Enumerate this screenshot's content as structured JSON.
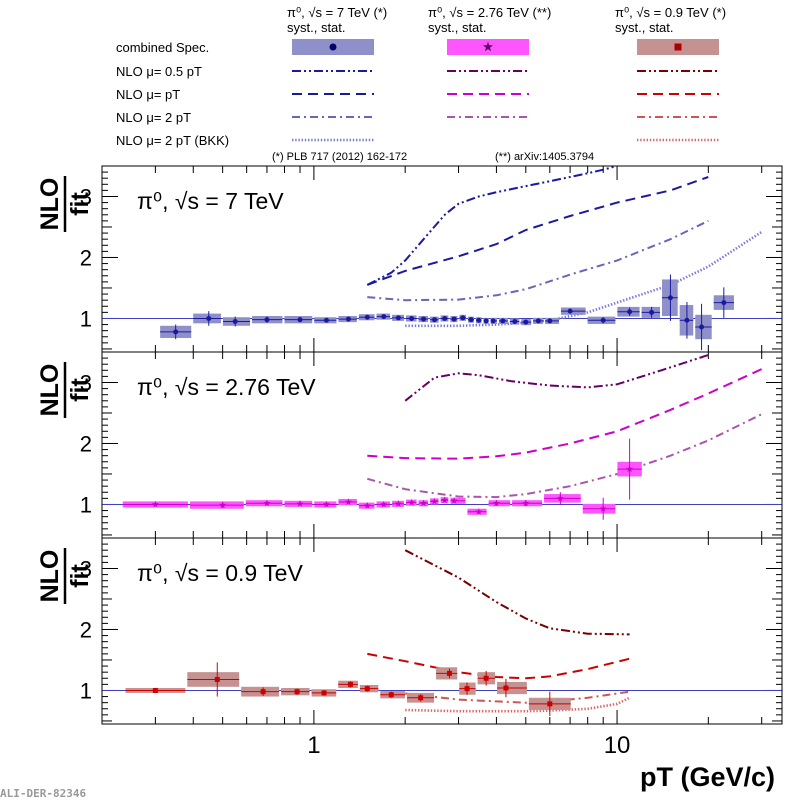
{
  "legend": {
    "headers": [
      {
        "label": "π⁰, √s = 7 TeV (*)",
        "sub": "syst., stat."
      },
      {
        "label": "π⁰, √s = 2.76 TeV (**)",
        "sub": "syst., stat."
      },
      {
        "label": "π⁰, √s = 0.9 TeV (*)",
        "sub": "syst., stat."
      }
    ],
    "rows": [
      "combined Spec.",
      "NLO μ= 0.5 pT",
      "NLO μ= pT",
      "NLO μ= 2 pT",
      "NLO μ= 2 pT (BKK)"
    ],
    "refs": [
      "(*) PLB 717 (2012) 162-172",
      "(**) arXiv:1405.3794"
    ]
  },
  "watermark": "ALI-DER-82346",
  "colors": {
    "7TeV": "#1a1aa0",
    "7TeV_box": "#8f90c9",
    "2.76TeV": "#cc00cc",
    "2.76TeV_dark": "#660066",
    "2.76TeV_box": "#ff55ff",
    "0.9TeV": "#cc0000",
    "0.9TeV_dark": "#7a0000",
    "0.9TeV_box": "#c69191",
    "unity_line": "#4040c0"
  },
  "chart_data": [
    {
      "type": "line",
      "panel_label": "π⁰, √s = 7 TeV",
      "ylabel": "NLO / fit",
      "xlabel": "pT (GeV/c)",
      "x_scale": "log",
      "xlim": [
        0.2,
        35
      ],
      "ylim": [
        0.45,
        3.5
      ],
      "yticks": [
        1,
        2,
        3
      ],
      "xtick_labels": [
        "1",
        "10"
      ],
      "series": [
        {
          "name": "combined Spec.",
          "style": "points",
          "x": [
            0.35,
            0.45,
            0.55,
            0.7,
            0.9,
            1.1,
            1.3,
            1.5,
            1.7,
            1.9,
            2.1,
            2.3,
            2.5,
            2.7,
            2.9,
            3.1,
            3.3,
            3.5,
            3.7,
            3.9,
            4.2,
            4.6,
            5.0,
            5.5,
            6.0,
            7.0,
            9.0,
            11.0,
            13.0,
            15.0,
            17.0,
            19.0,
            22.5
          ],
          "y": [
            0.78,
            1.0,
            0.95,
            0.98,
            0.98,
            0.97,
            0.99,
            1.02,
            1.03,
            1.01,
            1.0,
            0.99,
            0.98,
            1.0,
            0.99,
            1.01,
            0.98,
            0.97,
            0.96,
            0.96,
            0.96,
            0.95,
            0.94,
            0.96,
            0.96,
            1.12,
            0.97,
            1.11,
            1.1,
            1.34,
            0.97,
            0.86,
            1.26
          ],
          "syst": [
            0.1,
            0.08,
            0.07,
            0.06,
            0.06,
            0.05,
            0.05,
            0.05,
            0.05,
            0.05,
            0.05,
            0.05,
            0.05,
            0.05,
            0.05,
            0.05,
            0.05,
            0.05,
            0.05,
            0.05,
            0.05,
            0.05,
            0.05,
            0.05,
            0.05,
            0.06,
            0.06,
            0.08,
            0.09,
            0.3,
            0.25,
            0.2,
            0.12
          ],
          "stat": [
            0.12,
            0.12,
            0.08,
            0.05,
            0.04,
            0.03,
            0.03,
            0.03,
            0.02,
            0.02,
            0.02,
            0.02,
            0.02,
            0.02,
            0.02,
            0.02,
            0.02,
            0.02,
            0.02,
            0.02,
            0.02,
            0.02,
            0.02,
            0.02,
            0.02,
            0.04,
            0.05,
            0.07,
            0.09,
            0.38,
            0.3,
            0.38,
            0.25
          ]
        },
        {
          "name": "NLO μ= 0.5 pT",
          "style": "dashdotdot",
          "x": [
            1.5,
            1.8,
            2.0,
            2.3,
            2.7,
            3.0,
            3.5,
            4.0,
            5.0,
            6.0,
            7.0,
            8.0,
            9.0,
            10.0
          ],
          "y": [
            1.55,
            1.75,
            1.95,
            2.3,
            2.7,
            2.88,
            3.0,
            3.07,
            3.17,
            3.25,
            3.32,
            3.38,
            3.44,
            3.5
          ]
        },
        {
          "name": "NLO μ= pT",
          "style": "dashed",
          "x": [
            1.5,
            2.0,
            3.0,
            4.0,
            5.0,
            7.0,
            10.0,
            15.0,
            20.0
          ],
          "y": [
            1.55,
            1.78,
            2.02,
            2.22,
            2.45,
            2.68,
            2.9,
            3.1,
            3.32
          ]
        },
        {
          "name": "NLO μ= 2 pT",
          "style": "dashdot",
          "x": [
            1.5,
            2.0,
            3.0,
            4.0,
            5.0,
            7.0,
            10.0,
            15.0,
            20.0
          ],
          "y": [
            1.35,
            1.3,
            1.31,
            1.38,
            1.48,
            1.72,
            1.95,
            2.3,
            2.6
          ]
        },
        {
          "name": "NLO μ= 2 pT (BKK)",
          "style": "dotted",
          "x": [
            2.0,
            3.0,
            4.0,
            5.0,
            6.0,
            8.0,
            10.0,
            15.0,
            20.0,
            30.0
          ],
          "y": [
            0.88,
            0.88,
            0.9,
            0.93,
            0.97,
            1.1,
            1.26,
            1.55,
            1.85,
            2.42
          ]
        }
      ]
    },
    {
      "type": "line",
      "panel_label": "π⁰, √s = 2.76 TeV",
      "ylabel": "NLO / fit",
      "xlabel": "pT (GeV/c)",
      "x_scale": "log",
      "xlim": [
        0.2,
        35
      ],
      "ylim": [
        0.45,
        3.5
      ],
      "yticks": [
        1,
        2,
        3
      ],
      "series": [
        {
          "name": "combined Spec.",
          "style": "points",
          "x": [
            0.3,
            0.5,
            0.7,
            0.9,
            1.1,
            1.3,
            1.5,
            1.7,
            1.9,
            2.1,
            2.3,
            2.5,
            2.7,
            2.9,
            3.5,
            4.0,
            5.0,
            6.5,
            9.0,
            11.0
          ],
          "y": [
            1.0,
            0.99,
            1.02,
            1.01,
            1.0,
            1.04,
            0.98,
            1.0,
            1.01,
            1.03,
            1.02,
            1.05,
            1.07,
            1.06,
            0.88,
            1.02,
            1.02,
            1.1,
            0.93,
            1.58
          ],
          "syst": [
            0.05,
            0.06,
            0.05,
            0.05,
            0.05,
            0.05,
            0.05,
            0.05,
            0.05,
            0.05,
            0.05,
            0.05,
            0.05,
            0.05,
            0.05,
            0.05,
            0.05,
            0.07,
            0.08,
            0.12
          ],
          "stat": [
            0.0,
            0.05,
            0.03,
            0.02,
            0.02,
            0.02,
            0.02,
            0.02,
            0.02,
            0.02,
            0.02,
            0.02,
            0.03,
            0.03,
            0.03,
            0.04,
            0.05,
            0.1,
            0.18,
            0.5
          ]
        },
        {
          "name": "NLO μ= 0.5 pT",
          "style": "dashdotdot",
          "x": [
            2.0,
            2.5,
            3.0,
            3.5,
            4.5,
            6.0,
            8.0,
            10.0,
            14.0,
            20.0
          ],
          "y": [
            2.7,
            3.08,
            3.15,
            3.12,
            3.02,
            2.95,
            2.92,
            2.97,
            3.2,
            3.45
          ]
        },
        {
          "name": "NLO μ= pT",
          "style": "dashed",
          "x": [
            1.5,
            2.0,
            3.0,
            4.0,
            5.0,
            7.0,
            10.0,
            15.0,
            20.0,
            30.0
          ],
          "y": [
            1.8,
            1.76,
            1.75,
            1.79,
            1.85,
            2.0,
            2.2,
            2.55,
            2.82,
            3.22
          ]
        },
        {
          "name": "NLO μ= 2 pT",
          "style": "dashdot",
          "x": [
            1.5,
            2.0,
            3.0,
            4.0,
            5.0,
            7.0,
            10.0,
            15.0,
            20.0,
            30.0
          ],
          "y": [
            1.42,
            1.25,
            1.13,
            1.12,
            1.17,
            1.3,
            1.5,
            1.8,
            2.05,
            2.48
          ]
        }
      ]
    },
    {
      "type": "line",
      "panel_label": "π⁰, √s = 0.9 TeV",
      "ylabel": "NLO / fit",
      "xlabel": "pT (GeV/c)",
      "x_scale": "log",
      "xlim": [
        0.2,
        35
      ],
      "ylim": [
        0.45,
        3.5
      ],
      "yticks": [
        1,
        2,
        3
      ],
      "series": [
        {
          "name": "combined Spec.",
          "style": "points",
          "x": [
            0.3,
            0.48,
            0.68,
            0.88,
            1.08,
            1.32,
            1.5,
            1.8,
            2.25,
            2.8,
            3.2,
            3.7,
            4.3,
            6.0
          ],
          "y": [
            1.0,
            1.18,
            0.98,
            0.98,
            0.96,
            1.1,
            1.03,
            0.93,
            0.88,
            1.28,
            1.03,
            1.2,
            1.04,
            0.78
          ],
          "syst": [
            0.04,
            0.12,
            0.08,
            0.06,
            0.06,
            0.06,
            0.06,
            0.06,
            0.08,
            0.1,
            0.1,
            0.1,
            0.1,
            0.1
          ],
          "stat": [
            0.0,
            0.28,
            0.07,
            0.05,
            0.04,
            0.05,
            0.05,
            0.05,
            0.06,
            0.08,
            0.1,
            0.12,
            0.15,
            0.2
          ]
        },
        {
          "name": "NLO μ= 0.5 pT",
          "style": "dashdotdot",
          "x": [
            2.0,
            3.0,
            4.0,
            5.0,
            6.0,
            8.0,
            11.0
          ],
          "y": [
            3.3,
            2.85,
            2.45,
            2.18,
            2.02,
            1.93,
            1.92
          ]
        },
        {
          "name": "NLO μ= pT",
          "style": "dashed",
          "x": [
            1.5,
            2.0,
            2.5,
            3.0,
            4.0,
            5.0,
            6.0,
            8.0,
            11.0
          ],
          "y": [
            1.6,
            1.48,
            1.38,
            1.3,
            1.22,
            1.2,
            1.23,
            1.35,
            1.52
          ]
        },
        {
          "name": "NLO μ= 2 pT",
          "style": "dashdot",
          "x": [
            2.0,
            3.0,
            4.0,
            5.0,
            6.0,
            8.0,
            11.0
          ],
          "y": [
            0.95,
            0.85,
            0.82,
            0.8,
            0.82,
            0.88,
            0.98
          ]
        },
        {
          "name": "NLO μ= 2 pT (BKK)",
          "style": "dotted",
          "x": [
            2.0,
            3.0,
            4.0,
            5.0,
            6.0,
            8.0,
            10.0,
            11.0
          ],
          "y": [
            0.68,
            0.66,
            0.66,
            0.66,
            0.67,
            0.7,
            0.78,
            0.88
          ]
        }
      ]
    }
  ]
}
